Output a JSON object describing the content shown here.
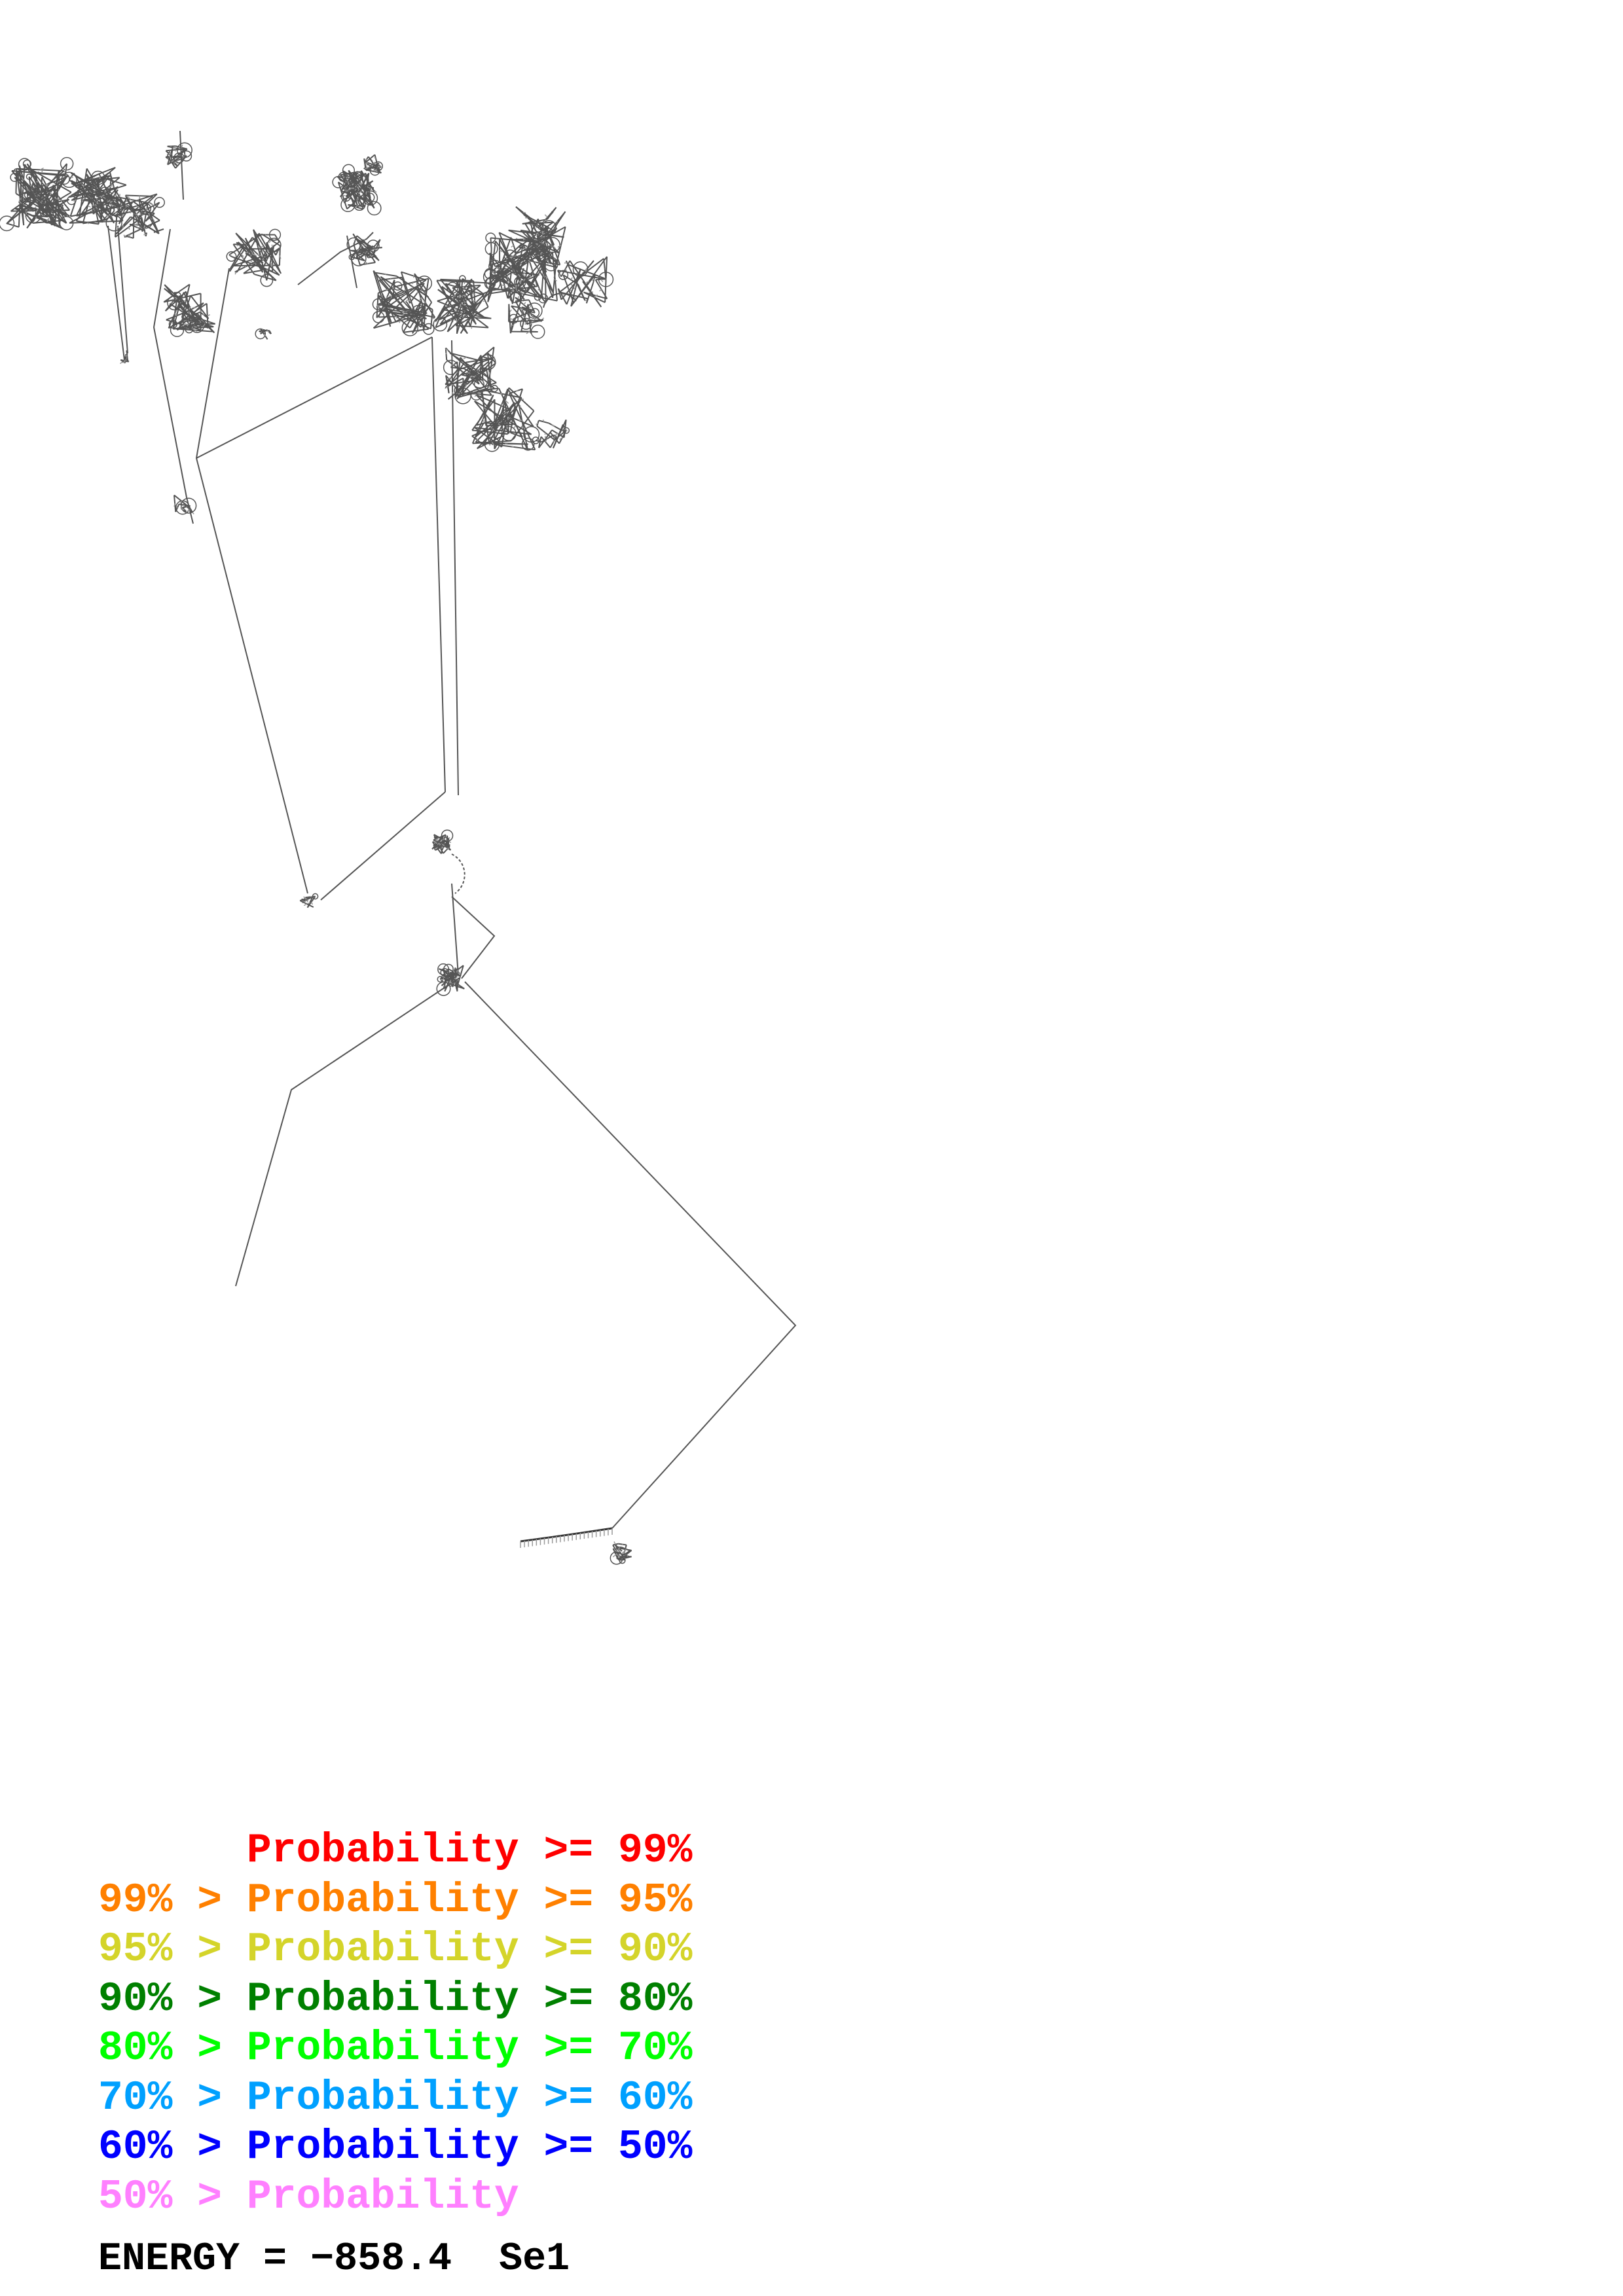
{
  "structure": {
    "line_color": "#555555",
    "base_color": "#999999"
  },
  "legend": {
    "rows": [
      {
        "upper": "",
        "label": "Probability",
        "lower": "99%",
        "color": "#ff0000"
      },
      {
        "upper": "99%",
        "label": "Probability",
        "lower": "95%",
        "color": "#ff8000"
      },
      {
        "upper": "95%",
        "label": "Probability",
        "lower": "90%",
        "color": "#d4d42a"
      },
      {
        "upper": "90%",
        "label": "Probability",
        "lower": "80%",
        "color": "#008000"
      },
      {
        "upper": "80%",
        "label": "Probability",
        "lower": "70%",
        "color": "#00ff00"
      },
      {
        "upper": "70%",
        "label": "Probability",
        "lower": "60%",
        "color": "#00a0ff"
      },
      {
        "upper": "60%",
        "label": "Probability",
        "lower": "50%",
        "color": "#0000ff"
      },
      {
        "upper": "50%",
        "label": "Probability",
        "lower": "",
        "color": "#ff80ff"
      }
    ]
  },
  "footer": {
    "energy_label": "ENERGY =",
    "energy_value": "−858.4",
    "sequence_name": "Se1"
  }
}
